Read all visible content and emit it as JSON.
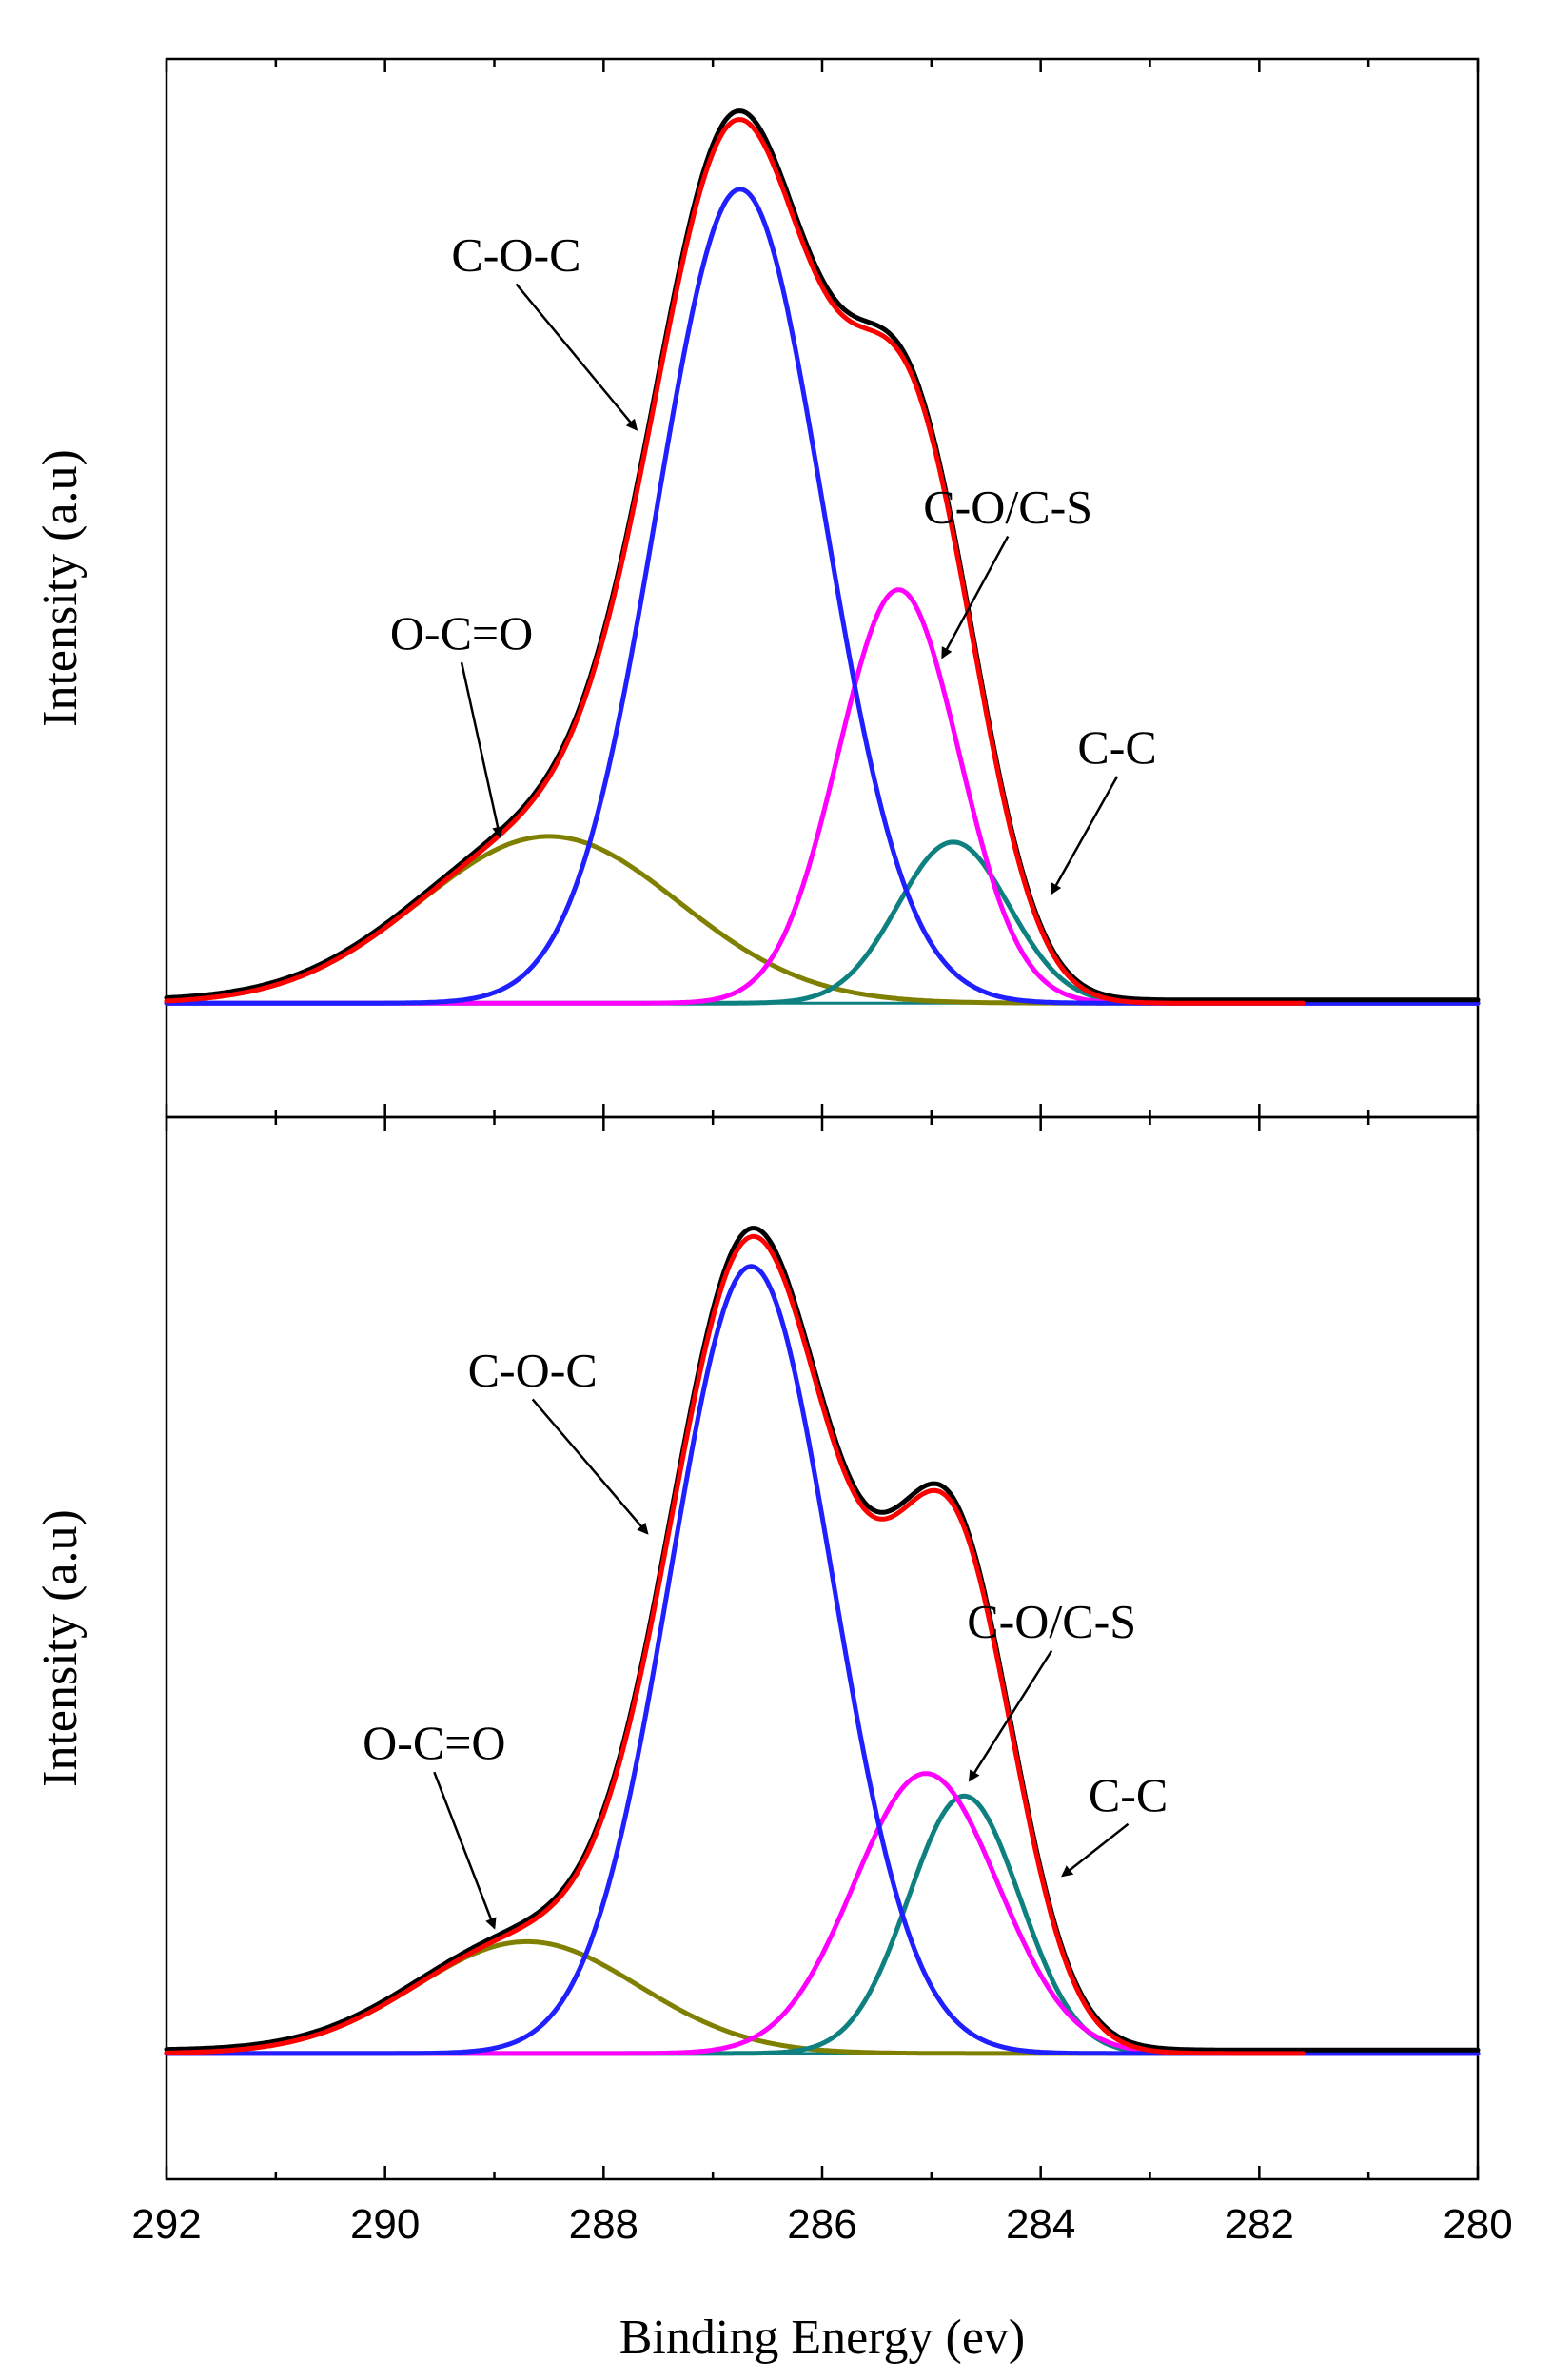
{
  "chart_data": {
    "type": "line",
    "xlabel": "Binding Energy (ev)",
    "x_range": [
      292,
      280
    ],
    "x_ticks": [
      292,
      290,
      288,
      286,
      284,
      282,
      280
    ],
    "x_tick_labels": [
      "292",
      "290",
      "288",
      "286",
      "284",
      "282",
      "280"
    ],
    "colors": {
      "experimental": "#000000",
      "envelope": "#ff0000",
      "C-O-C": "#1f1fff",
      "C-O/C-S": "#ff00ff",
      "C-C": "#0e8080",
      "O-C=O": "#808000"
    },
    "panels": [
      {
        "ylabel": "Intensity (a.u)",
        "ylim": [
          -0.14,
          1.16
        ],
        "baseline": 0.0,
        "peaks": [
          {
            "name": "C-O-C",
            "center": 286.75,
            "height": 1.0,
            "fwhm": 1.8,
            "shape": "gaussian"
          },
          {
            "name": "C-O/C-S",
            "center": 285.3,
            "height": 0.508,
            "fwhm": 1.3,
            "shape": "gaussian"
          },
          {
            "name": "C-C",
            "center": 284.8,
            "height": 0.198,
            "fwhm": 1.2,
            "shape": "gaussian"
          },
          {
            "name": "O-C=O",
            "center": 288.5,
            "height": 0.205,
            "fwhm": 2.8,
            "shape": "gaussian"
          }
        ],
        "annotations": [
          {
            "text": "C-O-C",
            "x": 288.8,
            "y": 0.9,
            "arrow_to": [
              287.7,
              0.705
            ]
          },
          {
            "text": "C-O/C-S",
            "x": 284.3,
            "y": 0.59,
            "arrow_to": [
              284.9,
              0.425
            ]
          },
          {
            "text": "O-C=O",
            "x": 289.3,
            "y": 0.435,
            "arrow_to": [
              288.95,
              0.205
            ]
          },
          {
            "text": "C-C",
            "x": 283.3,
            "y": 0.295,
            "arrow_to": [
              283.9,
              0.135
            ]
          }
        ]
      },
      {
        "ylabel": "Intensity (a.u)",
        "ylim": [
          -0.145,
          1.08
        ],
        "baseline": 0.0,
        "peaks": [
          {
            "name": "C-O-C",
            "center": 286.65,
            "height": 0.908,
            "fwhm": 1.75,
            "shape": "gaussian"
          },
          {
            "name": "C-O/C-S",
            "center": 285.05,
            "height": 0.323,
            "fwhm": 1.55,
            "shape": "gaussian"
          },
          {
            "name": "C-C",
            "center": 284.7,
            "height": 0.297,
            "fwhm": 1.2,
            "shape": "gaussian"
          },
          {
            "name": "O-C=O",
            "center": 288.7,
            "height": 0.129,
            "fwhm": 2.4,
            "shape": "gaussian"
          }
        ],
        "annotations": [
          {
            "text": "C-O-C",
            "x": 288.65,
            "y": 0.77,
            "arrow_to": [
              287.6,
              0.6
            ]
          },
          {
            "text": "C-O/C-S",
            "x": 283.9,
            "y": 0.48,
            "arrow_to": [
              284.65,
              0.315
            ]
          },
          {
            "text": "O-C=O",
            "x": 289.55,
            "y": 0.34,
            "arrow_to": [
              289.0,
              0.145
            ]
          },
          {
            "text": "C-C",
            "x": 283.2,
            "y": 0.28,
            "arrow_to": [
              283.8,
              0.205
            ]
          }
        ]
      }
    ]
  }
}
